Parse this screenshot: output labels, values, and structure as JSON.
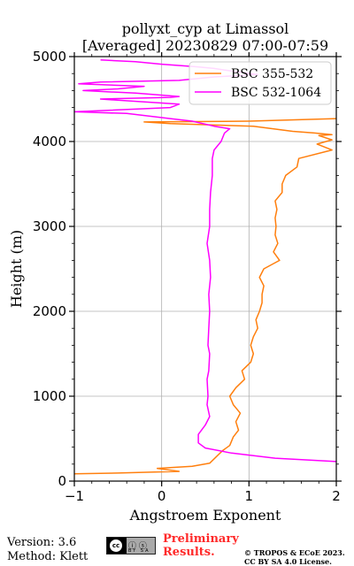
{
  "chart_data": {
    "type": "line",
    "title": [
      "pollyxt_cyp at Limassol",
      "[Averaged] 20230829 07:00-07:59"
    ],
    "xlabel": "Angstroem Exponent",
    "ylabel": "Height (m)",
    "xlim": [
      -1,
      2
    ],
    "ylim": [
      0,
      5000
    ],
    "xticks": [
      -1,
      0,
      1,
      2
    ],
    "yticks": [
      0,
      1000,
      2000,
      3000,
      4000,
      5000
    ],
    "grid": true,
    "legend_position": "top-right",
    "series": [
      {
        "name": "BSC 355-532",
        "color": "#ff7f0e",
        "points": [
          [
            -1.0,
            85
          ],
          [
            -0.5,
            95
          ],
          [
            0.2,
            115
          ],
          [
            -0.05,
            150
          ],
          [
            0.35,
            175
          ],
          [
            0.55,
            210
          ],
          [
            0.62,
            280
          ],
          [
            0.7,
            360
          ],
          [
            0.78,
            420
          ],
          [
            0.82,
            520
          ],
          [
            0.88,
            600
          ],
          [
            0.85,
            700
          ],
          [
            0.9,
            800
          ],
          [
            0.82,
            900
          ],
          [
            0.78,
            1000
          ],
          [
            0.85,
            1100
          ],
          [
            0.95,
            1200
          ],
          [
            0.92,
            1300
          ],
          [
            1.02,
            1400
          ],
          [
            1.05,
            1500
          ],
          [
            1.02,
            1600
          ],
          [
            1.05,
            1700
          ],
          [
            1.1,
            1800
          ],
          [
            1.08,
            1900
          ],
          [
            1.12,
            2000
          ],
          [
            1.15,
            2100
          ],
          [
            1.15,
            2200
          ],
          [
            1.17,
            2300
          ],
          [
            1.12,
            2400
          ],
          [
            1.17,
            2500
          ],
          [
            1.35,
            2600
          ],
          [
            1.28,
            2700
          ],
          [
            1.33,
            2800
          ],
          [
            1.3,
            2900
          ],
          [
            1.31,
            3000
          ],
          [
            1.3,
            3100
          ],
          [
            1.32,
            3200
          ],
          [
            1.3,
            3300
          ],
          [
            1.38,
            3400
          ],
          [
            1.38,
            3500
          ],
          [
            1.42,
            3600
          ],
          [
            1.55,
            3700
          ],
          [
            1.57,
            3800
          ],
          [
            1.95,
            3900
          ],
          [
            1.78,
            3970
          ],
          [
            1.95,
            4020
          ],
          [
            1.8,
            4070
          ],
          [
            1.95,
            4080
          ],
          [
            1.75,
            4100
          ],
          [
            1.5,
            4120
          ],
          [
            1.05,
            4180
          ],
          [
            0.1,
            4210
          ],
          [
            -0.2,
            4230
          ],
          [
            1.0,
            4240
          ],
          [
            2.0,
            4270
          ]
        ]
      },
      {
        "name": "BSC 532-1064",
        "color": "#ff00ff",
        "points": [
          [
            2.0,
            230
          ],
          [
            1.3,
            270
          ],
          [
            0.8,
            330
          ],
          [
            0.5,
            390
          ],
          [
            0.42,
            450
          ],
          [
            0.42,
            550
          ],
          [
            0.5,
            660
          ],
          [
            0.55,
            760
          ],
          [
            0.52,
            900
          ],
          [
            0.53,
            1000
          ],
          [
            0.52,
            1200
          ],
          [
            0.54,
            1300
          ],
          [
            0.55,
            1500
          ],
          [
            0.53,
            1600
          ],
          [
            0.54,
            1800
          ],
          [
            0.55,
            2000
          ],
          [
            0.54,
            2200
          ],
          [
            0.56,
            2400
          ],
          [
            0.55,
            2600
          ],
          [
            0.52,
            2800
          ],
          [
            0.55,
            3000
          ],
          [
            0.55,
            3200
          ],
          [
            0.56,
            3400
          ],
          [
            0.58,
            3600
          ],
          [
            0.58,
            3800
          ],
          [
            0.6,
            3900
          ],
          [
            0.68,
            4000
          ],
          [
            0.72,
            4100
          ],
          [
            0.78,
            4150
          ],
          [
            0.6,
            4180
          ],
          [
            0.35,
            4240
          ],
          [
            0.1,
            4270
          ],
          [
            -0.4,
            4330
          ],
          [
            -1.0,
            4350
          ],
          [
            0.1,
            4400
          ],
          [
            0.2,
            4440
          ],
          [
            -0.7,
            4500
          ],
          [
            0.1,
            4520
          ],
          [
            0.2,
            4530
          ],
          [
            -0.3,
            4570
          ],
          [
            -0.9,
            4600
          ],
          [
            -0.5,
            4620
          ],
          [
            -0.2,
            4650
          ],
          [
            -0.95,
            4680
          ],
          [
            -0.7,
            4700
          ],
          [
            0.2,
            4720
          ],
          [
            0.6,
            4760
          ],
          [
            1.1,
            4790
          ],
          [
            0.8,
            4830
          ],
          [
            0.6,
            4860
          ],
          [
            0.4,
            4880
          ],
          [
            0.0,
            4910
          ],
          [
            -0.3,
            4940
          ],
          [
            -0.7,
            4960
          ]
        ]
      }
    ]
  },
  "footer": {
    "version": "Version: 3.6",
    "method": "Method: Klett",
    "preliminary_line1": "Preliminary",
    "preliminary_line2": "Results.",
    "copyright_line1": "© TROPOS & ECoE 2023.",
    "copyright_line2": "CC BY SA 4.0 License."
  },
  "license_badge": {
    "symbol": "cc",
    "icons": "ⓘ ⓢ",
    "sub": "BY SA"
  }
}
